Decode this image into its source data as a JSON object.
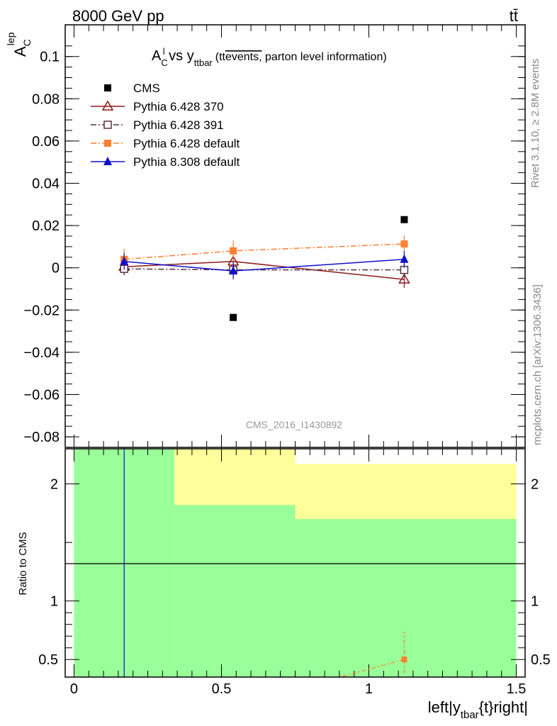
{
  "header": {
    "left": "8000 GeV pp",
    "right": "tt̄"
  },
  "side_labels": {
    "rivet": "Rivet 3.1.10, ≥ 2.8M events",
    "mcplots": "mcplots.cern.ch [arXiv:1306.3436]"
  },
  "main_panel": {
    "title_main": "A",
    "title_sup": "l",
    "title_sub": "C",
    "title_vs": " vs y",
    "title_vs_sub": "ttbar",
    "title_paren": "(tt",
    "title_overline": "events,",
    "title_rest": " parton level information)",
    "ylabel_main": "A",
    "ylabel_sup": "lep",
    "ylabel_sub": "C",
    "analysis_id": "CMS_2016_I1430892"
  },
  "ratio_panel": {
    "ylabel": "Ratio to CMS"
  },
  "xaxis": {
    "label_main": "left|y",
    "label_sub": "tbar",
    "label_rest": "{t}right|"
  },
  "chart_data": {
    "type": "scatter",
    "x": [
      0.17,
      0.54,
      1.12
    ],
    "xlim": [
      -0.03,
      1.53
    ],
    "main_ylim": [
      -0.085,
      0.115
    ],
    "main_yticks": [
      -0.08,
      -0.06,
      -0.04,
      -0.02,
      0,
      0.02,
      0.04,
      0.06,
      0.08,
      0.1
    ],
    "main_ytick_labels": [
      "−0.08",
      "−0.06",
      "−0.04",
      "−0.02",
      "0",
      "0.02",
      "0.04",
      "0.06",
      "0.08",
      "0.1"
    ],
    "xticks": [
      0,
      0.5,
      1,
      1.5
    ],
    "xtick_labels": [
      "0",
      "0.5",
      "1",
      "1.5"
    ],
    "ratio_ylim": [
      0.35,
      2.3
    ],
    "ratio_yticks": [
      0.5,
      1,
      2
    ],
    "ratio_ytick_labels": [
      "0.5",
      "1",
      "2"
    ],
    "legend_position": "top-left",
    "series": [
      {
        "name": "CMS",
        "color": "#000000",
        "marker": "square-filled",
        "values": [
          0.0,
          -0.0235,
          0.0228
        ],
        "line": "none"
      },
      {
        "name": "Pythia 6.428 370",
        "color": "#8b1a1a",
        "marker": "triangle-open",
        "values": [
          0.0005,
          0.003,
          -0.0055
        ],
        "errors": [
          0.004,
          0.003,
          0.004
        ],
        "line": "solid"
      },
      {
        "name": "Pythia 6.428 391",
        "color": "#5a3040",
        "marker": "square-open",
        "values": [
          -0.0005,
          -0.001,
          -0.001
        ],
        "errors": [
          0.003,
          0.003,
          0.003
        ],
        "line": "dashdot"
      },
      {
        "name": "Pythia 6.428 default",
        "color": "#ff8030",
        "marker": "square-filled",
        "values": [
          0.004,
          0.008,
          0.0113
        ],
        "errors": [
          0.005,
          0.005,
          0.004
        ],
        "line": "dashdot"
      },
      {
        "name": "Pythia 8.308 default",
        "color": "#1010cc",
        "marker": "triangle-filled",
        "values": [
          0.003,
          -0.0015,
          0.004
        ],
        "errors": [
          0.004,
          0.004,
          0.004
        ],
        "line": "solid"
      }
    ],
    "ratio_bands": {
      "yellow_color": "#ffff99",
      "green_color": "#99ff99",
      "bins": [
        {
          "x_low": 0.0,
          "x_high": 0.34,
          "yellow_high": 2.3,
          "green_high": 2.3
        },
        {
          "x_low": 0.34,
          "x_high": 0.75,
          "yellow_high": 2.3,
          "green_high": 1.82
        },
        {
          "x_low": 0.75,
          "x_high": 1.5,
          "yellow_high": 2.17,
          "green_high": 1.7
        }
      ]
    },
    "ratio_points": [
      {
        "series": "Pythia 6.428 default",
        "x": 1.12,
        "value": 0.5,
        "err_high": 0.74,
        "err_low": 0.38
      },
      {
        "series": "Pythia 8.308 default",
        "x": 0.17,
        "value": 0.35,
        "err_high": 2.3,
        "err_low": 0.35
      }
    ]
  }
}
